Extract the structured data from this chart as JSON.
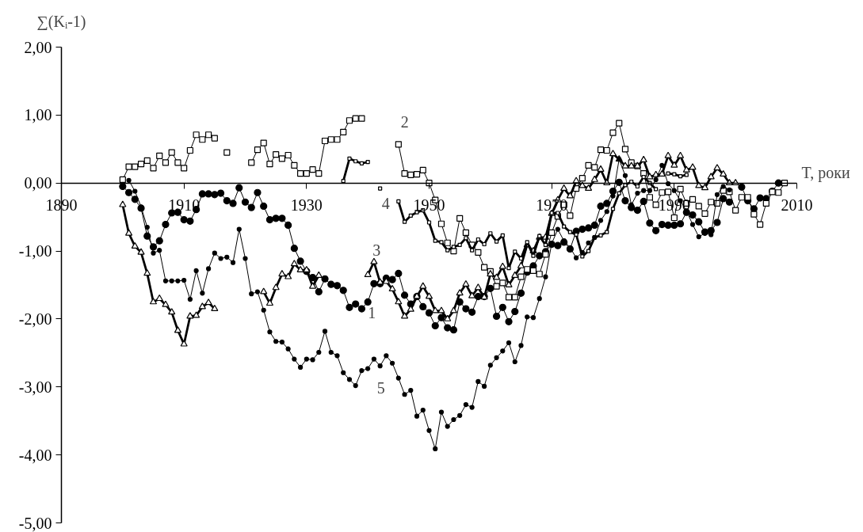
{
  "chart_data": {
    "type": "line",
    "xlabel": "T, роки",
    "ylabel": "∑(Kᵢ-1)",
    "xlim": [
      1890,
      2010
    ],
    "ylim": [
      -5,
      2
    ],
    "xticks": [
      1890,
      1910,
      1930,
      1950,
      1970,
      1990,
      2010
    ],
    "yticks": [
      {
        "value": 2,
        "label": "2,00"
      },
      {
        "value": 1,
        "label": "1,00"
      },
      {
        "value": 0,
        "label": "0,00"
      },
      {
        "value": -1,
        "label": "-1,00"
      },
      {
        "value": -2,
        "label": "-2,00"
      },
      {
        "value": -3,
        "label": "-3,00"
      },
      {
        "value": -4,
        "label": "-4,00"
      },
      {
        "value": -5,
        "label": "-5,00"
      }
    ],
    "grid": false,
    "legend": false,
    "series": [
      {
        "name": "1",
        "color": "#000000",
        "marker": "circle",
        "x": [
          1900,
          1901,
          1902,
          1903,
          1904,
          1905,
          1906,
          1907,
          1908,
          1909,
          1910,
          1911,
          1912,
          1913,
          1914,
          1915,
          1916,
          1917,
          1918,
          1919,
          1920,
          1921,
          1922,
          1923,
          1924,
          1925,
          1926,
          1927,
          1928,
          1929,
          1930,
          1931,
          1932,
          1933,
          1934,
          1935,
          1936,
          1937,
          1938,
          1939,
          1940,
          1941,
          1942,
          1943,
          1944,
          1945,
          1946,
          1947,
          1948,
          1949,
          1950,
          1951,
          1952,
          1953,
          1954,
          1955,
          1956,
          1957,
          1958,
          1959,
          1960,
          1961,
          1962,
          1963,
          1964,
          1965,
          1966,
          1967,
          1968,
          1969,
          1970,
          1971,
          1972,
          1973,
          1974,
          1975,
          1976,
          1977,
          1978,
          1979,
          1980,
          1981,
          1982,
          1983,
          1984,
          1985,
          1986,
          1987,
          1988,
          1989,
          1990,
          1991,
          1992,
          1993,
          1994,
          1995,
          1996,
          1997,
          1998,
          1999,
          2000,
          2001,
          2002,
          2003,
          2004,
          2005,
          2006,
          2007
        ],
        "values": [
          -0.05,
          -0.14,
          -0.24,
          -0.37,
          -0.78,
          -0.94,
          -0.85,
          -0.61,
          -0.44,
          -0.43,
          -0.54,
          -0.56,
          -0.39,
          -0.16,
          -0.16,
          -0.17,
          -0.15,
          -0.26,
          -0.3,
          -0.07,
          -0.28,
          -0.36,
          -0.14,
          -0.34,
          -0.54,
          -0.52,
          -0.52,
          -0.62,
          -0.96,
          -1.15,
          -1.3,
          -1.39,
          -1.6,
          -1.41,
          -1.49,
          -1.51,
          -1.58,
          -1.83,
          -1.78,
          -1.85,
          -1.75,
          -1.48,
          -1.48,
          -1.4,
          -1.42,
          -1.33,
          -1.65,
          -1.78,
          -1.67,
          -1.82,
          -1.91,
          -2.1,
          -1.98,
          -2.13,
          -2.16,
          -1.75,
          -1.85,
          -1.9,
          -1.67,
          -1.67,
          -1.55,
          -1.96,
          -1.83,
          -2.04,
          -1.89,
          -1.62,
          -1.31,
          -1.22,
          -1.07,
          -1.01,
          -0.9,
          -0.92,
          -0.87,
          -0.97,
          -0.71,
          -0.68,
          -0.66,
          -0.62,
          -0.34,
          -0.3,
          -0.12,
          0.01,
          -0.26,
          -0.36,
          -0.4,
          -0.27,
          -0.59,
          -0.7,
          -0.61,
          -0.62,
          -0.62,
          -0.6,
          -0.43,
          -0.47,
          -0.57,
          -0.72,
          -0.7,
          -0.58,
          -0.23,
          -0.28,
          null,
          -0.06,
          -0.26,
          -0.38,
          -0.22,
          -0.23,
          -0.12,
          0.0
        ]
      },
      {
        "name": "2",
        "color": "#000000",
        "marker": "square",
        "x": [
          1900,
          1901,
          1902,
          1903,
          1904,
          1905,
          1906,
          1907,
          1908,
          1909,
          1910,
          1911,
          1912,
          1913,
          1914,
          1915,
          1916,
          1917,
          1918,
          1919,
          1920,
          1921,
          1922,
          1923,
          1924,
          1925,
          1926,
          1927,
          1928,
          1929,
          1930,
          1931,
          1932,
          1933,
          1934,
          1935,
          1936,
          1937,
          1938,
          1939,
          1940,
          1941,
          1942,
          1943,
          1944,
          1945,
          1946,
          1947,
          1948,
          1949,
          1950,
          1951,
          1952,
          1953,
          1954,
          1955,
          1956,
          1957,
          1958,
          1959,
          1960,
          1961,
          1962,
          1963,
          1964,
          1965,
          1966,
          1967,
          1968,
          1969,
          1970,
          1971,
          1972,
          1973,
          1974,
          1975,
          1976,
          1977,
          1978,
          1979,
          1980,
          1981,
          1982,
          1983,
          1984,
          1985,
          1986,
          1987,
          1988,
          1989,
          1990,
          1991,
          1992,
          1993,
          1994,
          1995,
          1996,
          1997,
          1998,
          1999,
          2000,
          2001,
          2002,
          2003,
          2004,
          2005,
          2006,
          2007,
          2008
        ],
        "values": [
          0.05,
          0.24,
          0.24,
          0.28,
          0.33,
          0.22,
          0.4,
          0.3,
          0.45,
          0.3,
          0.22,
          0.48,
          0.71,
          0.64,
          0.71,
          0.66,
          null,
          0.45,
          null,
          null,
          null,
          0.3,
          0.49,
          0.59,
          0.28,
          0.42,
          0.36,
          0.41,
          0.26,
          0.14,
          0.14,
          0.2,
          0.14,
          0.62,
          0.64,
          0.64,
          0.75,
          0.92,
          0.95,
          0.95,
          null,
          null,
          null,
          null,
          null,
          0.57,
          0.14,
          0.12,
          0.13,
          0.19,
          0.0,
          -0.25,
          -0.6,
          -0.88,
          -1.0,
          -0.52,
          -0.73,
          -0.91,
          -1.02,
          -1.24,
          -1.3,
          -1.52,
          -1.47,
          -1.68,
          -1.68,
          -1.38,
          -1.27,
          -1.29,
          -1.34,
          -1.05,
          -0.73,
          -0.49,
          -0.32,
          -0.48,
          -0.08,
          0.07,
          0.26,
          0.23,
          0.49,
          0.48,
          0.74,
          0.88,
          0.5,
          0.3,
          0.25,
          0.14,
          -0.21,
          -0.32,
          -0.14,
          -0.13,
          -0.51,
          -0.09,
          -0.3,
          -0.24,
          -0.34,
          -0.45,
          -0.28,
          -0.3,
          -0.11,
          -0.13,
          -0.4,
          -0.21,
          -0.21,
          -0.46,
          -0.61,
          -0.3,
          -0.13,
          -0.14,
          0.0
        ]
      },
      {
        "name": "3",
        "color": "#000000",
        "marker": "triangle",
        "x": [
          1900,
          1901,
          1902,
          1903,
          1904,
          1905,
          1906,
          1907,
          1908,
          1909,
          1910,
          1911,
          1912,
          1913,
          1914,
          1915,
          1916,
          1917,
          1918,
          1919,
          1920,
          1921,
          1922,
          1923,
          1924,
          1925,
          1926,
          1927,
          1928,
          1929,
          1930,
          1931,
          1932,
          1933,
          1934,
          1935,
          1936,
          1937,
          1938,
          1939,
          1940,
          1941,
          1942,
          1943,
          1944,
          1945,
          1946,
          1947,
          1948,
          1949,
          1950,
          1951,
          1952,
          1953,
          1954,
          1955,
          1956,
          1957,
          1958,
          1959,
          1960,
          1961,
          1962,
          1963,
          1964,
          1965,
          1966,
          1967,
          1968,
          1969,
          1970,
          1971,
          1972,
          1973,
          1974,
          1975,
          1976,
          1977,
          1978,
          1979,
          1980,
          1981,
          1982,
          1983,
          1984,
          1985,
          1986,
          1987,
          1988,
          1989,
          1990,
          1991,
          1992,
          1993,
          1994,
          1995,
          1996,
          1997,
          1998,
          1999,
          2000
        ],
        "values": [
          -0.32,
          -0.74,
          -0.93,
          -1.02,
          -1.33,
          -1.75,
          -1.7,
          -1.79,
          -1.9,
          -2.17,
          -2.37,
          -1.96,
          -1.95,
          -1.82,
          -1.76,
          -1.85,
          null,
          null,
          null,
          null,
          null,
          null,
          null,
          -1.6,
          -1.77,
          -1.54,
          -1.34,
          -1.38,
          -1.19,
          -1.28,
          -1.28,
          -1.52,
          -1.36,
          null,
          null,
          null,
          null,
          null,
          null,
          null,
          -1.35,
          -1.16,
          -1.46,
          -1.45,
          -1.56,
          -1.75,
          -1.96,
          -1.86,
          -1.67,
          -1.52,
          -1.67,
          -1.88,
          -1.88,
          -2.0,
          -1.88,
          -1.62,
          -1.49,
          -1.66,
          -1.54,
          -1.68,
          -1.34,
          -1.39,
          -1.23,
          -1.5,
          -1.36,
          -1.22,
          -0.91,
          -1.0,
          -0.8,
          -0.8,
          -0.45,
          -0.25,
          -0.08,
          -0.19,
          0.03,
          -0.04,
          -0.08,
          0.05,
          0.2,
          0.0,
          0.43,
          0.35,
          0.25,
          0.25,
          0.25,
          0.34,
          0.09,
          0.12,
          0.13,
          0.4,
          0.26,
          0.4,
          0.19,
          0.23,
          -0.04,
          -0.07,
          0.09,
          0.22,
          0.13,
          0.0,
          0.0
        ]
      },
      {
        "name": "4",
        "color": "#000000",
        "marker": "square",
        "x": [
          1936,
          1937,
          1938,
          1939,
          1940,
          1941,
          1942,
          1943,
          1944,
          1945,
          1946,
          1947,
          1948,
          1949,
          1950,
          1951,
          1952,
          1953,
          1954,
          1955,
          1956,
          1957,
          1958,
          1959,
          1960,
          1961,
          1962,
          1963,
          1964,
          1965,
          1966,
          1967,
          1968,
          1969,
          1970,
          1971,
          1972,
          1973,
          1974,
          1975,
          1976,
          1977,
          1978,
          1979,
          1980,
          1981,
          1982,
          1983,
          1984,
          1985,
          1986,
          1987,
          1988,
          1989,
          1990,
          1991,
          1992
        ],
        "values": [
          0.03,
          0.36,
          0.32,
          0.29,
          0.31,
          null,
          -0.08,
          null,
          null,
          -0.27,
          -0.57,
          -0.48,
          -0.43,
          -0.4,
          -0.58,
          -0.85,
          -0.87,
          -0.99,
          -0.94,
          -0.91,
          -0.81,
          -0.99,
          -0.83,
          -0.9,
          -0.74,
          -0.86,
          -0.77,
          -1.25,
          -1.01,
          -1.11,
          -0.87,
          -1.07,
          -0.78,
          -0.91,
          -0.44,
          -0.44,
          -0.64,
          -0.72,
          -0.76,
          -1.08,
          -1.0,
          -0.8,
          -0.77,
          -0.72,
          -0.38,
          -0.15,
          -0.03,
          0.02,
          -0.05,
          0.09,
          0.0,
          -0.09,
          null,
          0.14,
          0.13,
          0.1,
          0.12
        ]
      },
      {
        "name": "5",
        "color": "#000000",
        "marker": "circle",
        "x": [
          1901,
          1902,
          1903,
          1904,
          1905,
          1906,
          1907,
          1908,
          1909,
          1910,
          1911,
          1912,
          1913,
          1914,
          1915,
          1916,
          1917,
          1918,
          1919,
          1920,
          1921,
          1922,
          1923,
          1924,
          1925,
          1926,
          1927,
          1928,
          1929,
          1930,
          1931,
          1932,
          1933,
          1934,
          1935,
          1936,
          1937,
          1938,
          1939,
          1940,
          1941,
          1942,
          1943,
          1944,
          1945,
          1946,
          1947,
          1948,
          1949,
          1950,
          1951,
          1952,
          1953,
          1954,
          1955,
          1956,
          1957,
          1958,
          1959,
          1960,
          1961,
          1962,
          1963,
          1964,
          1965,
          1966,
          1967,
          1968,
          1969,
          1970,
          1971,
          1972,
          1973,
          1974,
          1975,
          1976,
          1977,
          1978,
          1979,
          1980,
          1981,
          1982,
          1983,
          1984,
          1985,
          1986,
          1987,
          1988,
          1989,
          1990,
          1991,
          1992,
          1993,
          1994,
          1995,
          1996,
          1997,
          1998,
          1999
        ],
        "values": [
          0.04,
          -0.12,
          -0.35,
          -0.65,
          -1.03,
          -0.99,
          -1.44,
          -1.44,
          -1.44,
          -1.43,
          -1.71,
          -1.29,
          -1.62,
          -1.26,
          -1.03,
          -1.11,
          -1.09,
          -1.17,
          -0.68,
          -1.11,
          -1.63,
          -1.6,
          -1.87,
          -2.19,
          -2.33,
          -2.34,
          -2.44,
          -2.59,
          -2.71,
          -2.59,
          -2.6,
          -2.49,
          -2.18,
          -2.49,
          -2.54,
          -2.79,
          -2.89,
          -2.98,
          -2.76,
          -2.73,
          -2.59,
          -2.69,
          -2.54,
          -2.65,
          -2.87,
          -3.11,
          -3.05,
          -3.43,
          -3.34,
          -3.64,
          -3.91,
          -3.37,
          -3.58,
          -3.48,
          -3.42,
          -3.26,
          -3.3,
          -2.92,
          -2.99,
          -2.68,
          -2.57,
          -2.47,
          -2.35,
          -2.63,
          -2.39,
          -1.97,
          -1.98,
          -1.7,
          -1.38,
          -0.89,
          -0.68,
          -0.85,
          -0.95,
          -1.1,
          -1.02,
          -0.88,
          -0.8,
          -0.55,
          -0.42,
          -0.19,
          0.35,
          0.11,
          -0.32,
          -0.15,
          -0.11,
          -0.11,
          0.05,
          0.26,
          -0.01,
          -0.11,
          -0.26,
          -0.41,
          -0.61,
          -0.79,
          -0.74,
          -0.76,
          -0.17,
          -0.05,
          -0.1
        ]
      }
    ]
  }
}
